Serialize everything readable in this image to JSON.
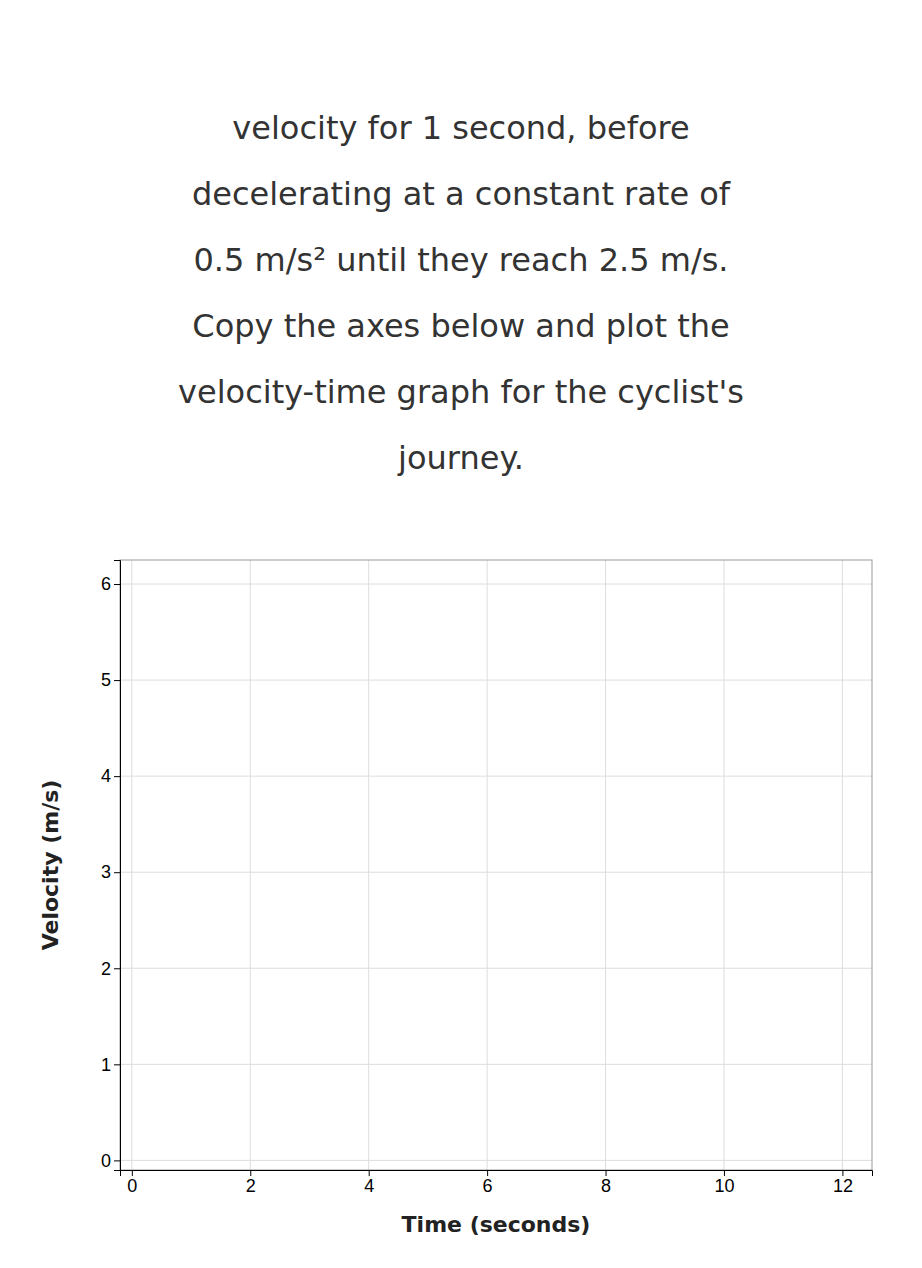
{
  "chart_data": {
    "type": "line",
    "annotations": [
      "velocity for 1 second, before",
      "decelerating at a constant rate of",
      "0.5 m/s² until they reach 2.5 m/s.",
      "Copy the axes below and plot the",
      "velocity-time graph for the cyclist's",
      "journey."
    ],
    "xlabel": "Time (seconds)",
    "ylabel": "Velocity (m/s)",
    "series": [],
    "xlim": [
      -0.2,
      12.5
    ],
    "ylim": [
      -0.1,
      6.25
    ],
    "xticks": [
      0,
      2,
      4,
      6,
      8,
      10,
      12
    ],
    "yticks": [
      0,
      1,
      2,
      3,
      4,
      5,
      6
    ],
    "grid": true
  }
}
